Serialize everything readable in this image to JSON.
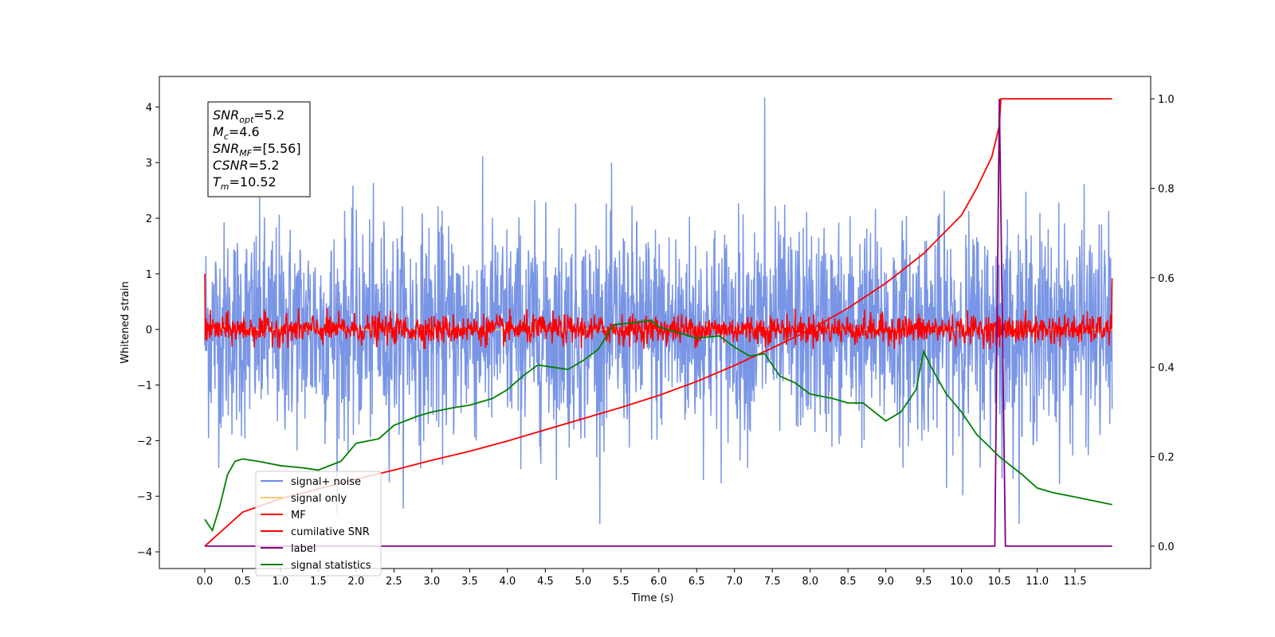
{
  "chart_data": {
    "type": "line",
    "xlabel": "Time (s)",
    "ylabel": "Whitened strain",
    "xlim": [
      -0.6,
      12.5
    ],
    "ylim_left": [
      -4.3,
      4.55
    ],
    "ylim_right": [
      -0.05,
      1.05
    ],
    "x_ticks": [
      "0.0",
      "0.5",
      "1.0",
      "1.5",
      "2.0",
      "2.5",
      "3.0",
      "3.5",
      "4.0",
      "4.5",
      "5.0",
      "5.5",
      "6.0",
      "6.5",
      "7.0",
      "7.5",
      "8.0",
      "8.5",
      "9.0",
      "9.5",
      "10.0",
      "10.5",
      "11.0",
      "11.5"
    ],
    "y_ticks_left": [
      "−4",
      "−3",
      "−2",
      "−1",
      "0",
      "1",
      "2",
      "3",
      "4"
    ],
    "y_ticks_right": [
      "0.0",
      "0.2",
      "0.4",
      "0.6",
      "0.8",
      "1.0"
    ],
    "legend_position": "lower-left",
    "annotation": {
      "position": "upper-left",
      "lines": [
        {
          "sym": "SNR",
          "sub": "opt",
          "val": "=5.2"
        },
        {
          "sym": "M",
          "sub": "c",
          "val": "=4.6"
        },
        {
          "sym": "SNR",
          "sub": "MF",
          "val": "=[5.56]"
        },
        {
          "sym": "CSNR",
          "sub": "",
          "val": "=5.2"
        },
        {
          "sym": "T",
          "sub": "m",
          "val": "=10.52"
        }
      ]
    },
    "series": [
      {
        "name": "signal+ noise",
        "color": "#6a89e2",
        "axis": "left",
        "kind": "noise",
        "x_range": [
          0.0,
          11.99
        ],
        "std": 0.95,
        "peak_x": 7.4,
        "peak_y": 4.17
      },
      {
        "name": "signal only",
        "color": "#ffc870",
        "axis": "left",
        "kind": "flat",
        "x_range": [
          0.0,
          11.99
        ],
        "value": 0.0
      },
      {
        "name": "MF",
        "color": "#ff0000",
        "axis": "left",
        "kind": "noise",
        "x_range": [
          0.0,
          11.99
        ],
        "std": 0.13,
        "start_y": 1.0,
        "end_y": 0.92
      },
      {
        "name": "cumilative SNR",
        "color": "#ff0000",
        "axis": "right",
        "kind": "line",
        "x": [
          0.0,
          0.5,
          1.0,
          1.5,
          2.0,
          2.5,
          3.0,
          3.5,
          4.0,
          4.5,
          5.0,
          5.5,
          6.0,
          6.5,
          7.0,
          7.5,
          8.0,
          8.5,
          9.0,
          9.5,
          10.0,
          10.2,
          10.4,
          10.5,
          10.52,
          11.0,
          11.99
        ],
        "y": [
          0.0,
          0.076,
          0.106,
          0.128,
          0.15,
          0.17,
          0.192,
          0.212,
          0.235,
          0.26,
          0.285,
          0.31,
          0.337,
          0.368,
          0.404,
          0.443,
          0.484,
          0.532,
          0.588,
          0.654,
          0.74,
          0.8,
          0.87,
          0.94,
          1.0,
          1.0,
          1.0
        ]
      },
      {
        "name": "label",
        "color": "#800080",
        "axis": "right",
        "kind": "line",
        "x": [
          0.0,
          10.44,
          10.5,
          10.58,
          11.99
        ],
        "y": [
          0.0,
          0.0,
          1.0,
          0.0,
          0.0
        ]
      },
      {
        "name": "signal statistics",
        "color": "#008000",
        "axis": "right",
        "kind": "line",
        "x": [
          0.0,
          0.1,
          0.2,
          0.3,
          0.4,
          0.5,
          0.7,
          1.0,
          1.3,
          1.5,
          1.8,
          2.0,
          2.3,
          2.5,
          2.8,
          3.0,
          3.3,
          3.5,
          3.8,
          4.0,
          4.2,
          4.4,
          4.6,
          4.8,
          5.0,
          5.2,
          5.4,
          5.7,
          5.9,
          6.0,
          6.3,
          6.5,
          6.8,
          7.0,
          7.2,
          7.4,
          7.6,
          7.8,
          8.0,
          8.3,
          8.5,
          8.7,
          9.0,
          9.2,
          9.4,
          9.5,
          9.6,
          9.8,
          10.0,
          10.2,
          10.5,
          10.8,
          11.0,
          11.2,
          11.5,
          11.99
        ],
        "y": [
          0.06,
          0.035,
          0.09,
          0.16,
          0.19,
          0.195,
          0.19,
          0.18,
          0.175,
          0.17,
          0.19,
          0.23,
          0.24,
          0.27,
          0.29,
          0.3,
          0.31,
          0.315,
          0.33,
          0.35,
          0.38,
          0.405,
          0.4,
          0.395,
          0.415,
          0.44,
          0.495,
          0.5,
          0.505,
          0.49,
          0.475,
          0.465,
          0.47,
          0.445,
          0.425,
          0.43,
          0.38,
          0.365,
          0.34,
          0.33,
          0.32,
          0.32,
          0.28,
          0.3,
          0.35,
          0.435,
          0.4,
          0.34,
          0.3,
          0.25,
          0.2,
          0.16,
          0.13,
          0.12,
          0.11,
          0.093
        ]
      }
    ]
  }
}
